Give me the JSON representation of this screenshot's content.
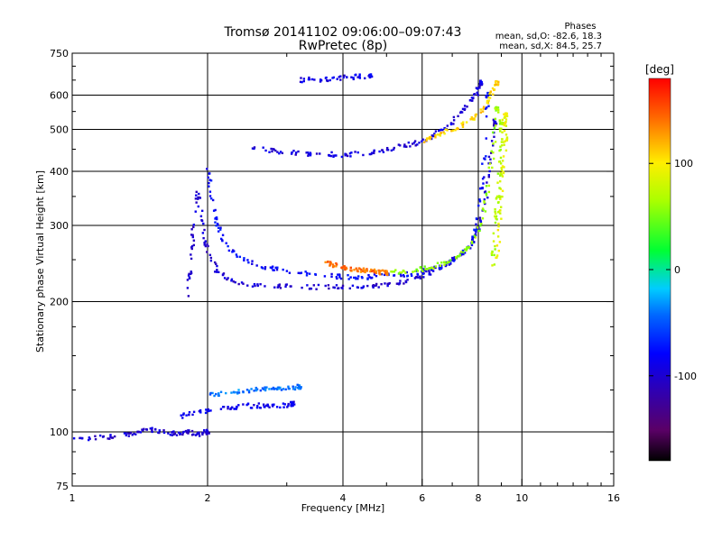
{
  "chart_data": {
    "type": "scatter",
    "title": "Tromsø 20141102 09:06:00–09:07:43",
    "subtitle": "RwPretec (8p)",
    "stats_lines": [
      "Phases",
      "mean, sd,O:  -82.6, 18.3",
      "mean, sd,X:  84.5, 25.7"
    ],
    "xlabel": "Frequency [MHz]",
    "ylabel": "Stationary phase Virtual Height [km]",
    "x_scale": "log",
    "y_scale": "log",
    "xlim": [
      1,
      16
    ],
    "ylim": [
      75,
      750
    ],
    "x_ticks": [
      1,
      2,
      4,
      6,
      8,
      10,
      16
    ],
    "x_tick_labels": [
      "1",
      "2",
      "4",
      "6",
      "8",
      "10",
      "16"
    ],
    "x_gridlines": [
      2,
      4,
      6,
      8,
      10
    ],
    "y_ticks": [
      75,
      100,
      200,
      300,
      400,
      500,
      600,
      750
    ],
    "y_tick_labels": [
      "75",
      "100",
      "200",
      "300",
      "400",
      "500",
      "600",
      "750"
    ],
    "y_gridlines": [
      100,
      200,
      300,
      400,
      500,
      600
    ],
    "grid": true,
    "colorbar": {
      "label": "[deg]",
      "min": -180,
      "max": 180,
      "ticks": [
        100,
        0,
        -100
      ],
      "tick_labels": [
        "100",
        "0",
        "-100"
      ]
    },
    "series": [
      {
        "traces": [
          {
            "x": [
              1.8,
              1.83,
              1.86,
              1.9,
              1.95,
              2.0,
              2.1,
              2.3,
              2.6,
              3.0,
              3.5,
              4.0,
              4.5,
              5.0,
              5.5,
              6.0,
              6.5,
              7.0,
              7.5,
              8.0,
              8.3,
              8.5,
              8.7
            ],
            "y": [
              205,
              235,
              290,
              360,
              300,
              260,
              235,
              222,
              218,
              217,
              216,
              216,
              217,
              219,
              223,
              230,
              238,
              248,
              262,
              290,
              340,
              420,
              520
            ],
            "phase": -100
          },
          {
            "x": [
              2.0,
              2.05,
              2.1,
              2.2,
              2.4,
              2.7,
              3.0,
              3.5,
              4.0,
              4.5,
              5.0,
              5.5,
              6.0,
              6.5,
              7.0,
              7.5,
              7.8,
              8.0,
              8.2,
              8.4
            ],
            "y": [
              410,
              350,
              300,
              270,
              250,
              240,
              235,
              230,
              228,
              228,
              229,
              231,
              234,
              240,
              248,
              262,
              280,
              320,
              400,
              600
            ],
            "phase": -80
          },
          {
            "x": [
              2.5,
              2.8,
              3.2,
              3.6,
              4.0,
              4.5,
              5.0,
              5.5,
              6.0,
              6.5,
              7.0,
              7.5,
              7.9,
              8.1
            ],
            "y": [
              455,
              445,
              440,
              438,
              437,
              440,
              448,
              458,
              470,
              490,
              520,
              560,
              600,
              640
            ],
            "phase": -95
          },
          {
            "x": [
              3.6,
              3.8,
              4.0,
              4.2,
              4.4,
              4.6,
              4.8,
              5.0
            ],
            "y": [
              250,
              243,
              240,
              238,
              236,
              235,
              234,
              233
            ],
            "phase": 140
          },
          {
            "x": [
              5.0,
              5.5,
              6.0,
              6.5,
              7.0,
              7.5,
              8.0,
              8.3,
              8.6,
              8.8
            ],
            "y": [
              233,
              235,
              238,
              243,
              250,
              262,
              290,
              340,
              430,
              560
            ],
            "phase": 60
          },
          {
            "x": [
              6.0,
              6.5,
              7.0,
              7.5,
              8.0,
              8.5,
              8.8
            ],
            "y": [
              470,
              485,
              500,
              515,
              540,
              590,
              640
            ],
            "phase": 110
          },
          {
            "x": [
              8.8,
              8.9,
              9.0,
              9.1,
              9.2,
              9.2
            ],
            "y": [
              250,
              300,
              360,
              420,
              480,
              540
            ],
            "phase": 90
          },
          {
            "x": [
              8.6,
              8.7,
              8.8,
              8.9,
              9.0,
              9.0
            ],
            "y": [
              240,
              280,
              330,
              390,
              450,
              520
            ],
            "phase": 70
          },
          {
            "x": [
              3.2,
              3.5,
              3.8,
              4.2,
              4.6
            ],
            "y": [
              650,
              652,
              655,
              660,
              665
            ],
            "phase": -90
          },
          {
            "x": [
              1.0,
              1.15,
              1.3,
              1.4,
              1.5,
              1.6,
              1.7,
              1.8,
              1.9,
              2.0
            ],
            "y": [
              96,
              97,
              98,
              100,
              101,
              100,
              99,
              100,
              99,
              100
            ],
            "phase": -100
          },
          {
            "x": [
              1.7,
              1.9,
              2.1,
              2.3,
              2.5,
              2.7,
              2.9,
              3.1
            ],
            "y": [
              108,
              111,
              113,
              114,
              115,
              115,
              115,
              116
            ],
            "phase": -90
          },
          {
            "x": [
              2.0,
              2.2,
              2.4,
              2.6,
              2.8,
              3.0,
              3.2
            ],
            "y": [
              122,
              123,
              124,
              125,
              126,
              126,
              127
            ],
            "phase": -40
          }
        ]
      }
    ]
  }
}
